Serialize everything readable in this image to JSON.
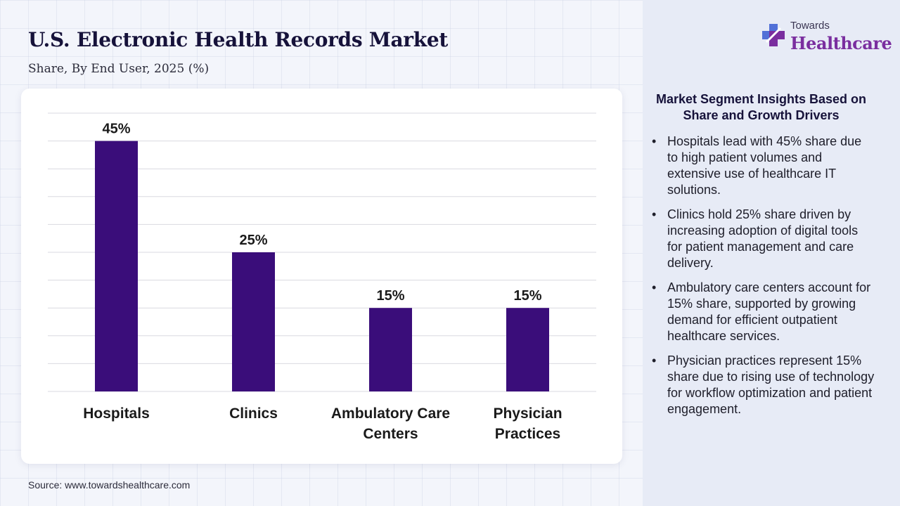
{
  "header": {
    "title": "U.S. Electronic Health Records Market",
    "subtitle": "Share, By End User, 2025 (%)"
  },
  "source": "Source: www.towardshealthcare.com",
  "logo": {
    "top": "Towards",
    "main": "Healthcare",
    "icon": "medical-cross-icon"
  },
  "colors": {
    "bar": "#3a0d7a",
    "grid": "#d9d9e0",
    "label": "#1a1a1a",
    "logo_accent": "#7a2e9f"
  },
  "chart_data": {
    "type": "bar",
    "categories": [
      "Hospitals",
      "Clinics",
      "Ambulatory Care Centers",
      "Physician Practices"
    ],
    "category_lines": [
      [
        "Hospitals"
      ],
      [
        "Clinics"
      ],
      [
        "Ambulatory Care",
        "Centers"
      ],
      [
        "Physician",
        "Practices"
      ]
    ],
    "values": [
      45,
      25,
      15,
      15
    ],
    "value_labels": [
      "45%",
      "25%",
      "15%",
      "15%"
    ],
    "title": "",
    "xlabel": "",
    "ylabel": "",
    "ylim": [
      0,
      50
    ],
    "grid": true,
    "grid_step": 5,
    "legend": "none"
  },
  "insights": {
    "title": "Market Segment Insights Based on Share and Growth Drivers",
    "items": [
      "Hospitals lead with 45% share due to high patient volumes and extensive use of healthcare IT solutions.",
      "Clinics hold 25% share driven by increasing adoption of digital tools for patient management and care delivery.",
      "Ambulatory care centers account for 15% share, supported by growing demand for efficient outpatient healthcare services.",
      "Physician practices represent 15% share due to rising use of technology for workflow optimization and patient engagement."
    ]
  }
}
